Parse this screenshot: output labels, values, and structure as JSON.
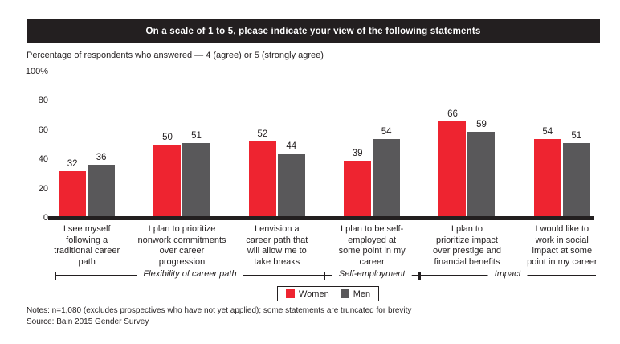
{
  "banner": {
    "title": "On a scale of 1 to 5, please indicate your view of the following statements"
  },
  "subtitle": "Percentage of respondents who answered — 4 (agree) or 5 (strongly agree)",
  "y_axis": {
    "ticks": [
      {
        "label": "100%",
        "value": 100
      },
      {
        "label": "80",
        "value": 80
      },
      {
        "label": "60",
        "value": 60
      },
      {
        "label": "40",
        "value": 40
      },
      {
        "label": "20",
        "value": 20
      },
      {
        "label": "0",
        "value": 0
      }
    ]
  },
  "chart_data": {
    "type": "bar",
    "title": "On a scale of 1 to 5, please indicate your view of the following statements",
    "ylabel": "Percentage of respondents who answered — 4 (agree) or 5 (strongly agree)",
    "ylim": [
      0,
      100
    ],
    "yticks": [
      0,
      20,
      40,
      60,
      80,
      100
    ],
    "grid": false,
    "legend_position": "bottom",
    "categories": [
      "I see myself\nfollowing a\ntraditional career\npath",
      "I plan to prioritize\nnonwork commitments\nover career\nprogression",
      "I envision a\ncareer path that\nwill allow me to\ntake breaks",
      "I plan to be self-\nemployed at\nsome point in my\ncareer",
      "I plan to\nprioritize impact\nover prestige and\nfinancial benefits",
      "I would like to\nwork in social\nimpact at some\npoint in my career"
    ],
    "series": [
      {
        "name": "Women",
        "color": "#ee2430",
        "values": [
          32,
          50,
          52,
          39,
          66,
          54
        ]
      },
      {
        "name": "Men",
        "color": "#59585a",
        "values": [
          36,
          51,
          44,
          54,
          59,
          51
        ]
      }
    ],
    "category_groups": [
      {
        "label": "Flexibility of career path",
        "from": 0,
        "to": 2
      },
      {
        "label": "Self-employment",
        "from": 3,
        "to": 3
      },
      {
        "label": "Impact",
        "from": 4,
        "to": 5
      }
    ]
  },
  "legend": {
    "items": [
      {
        "label": "Women",
        "color": "#ee2430"
      },
      {
        "label": "Men",
        "color": "#59585a"
      }
    ]
  },
  "notes": "Notes: n=1,080 (excludes prospectives who have not yet applied); some statements are truncated for brevity",
  "source": "Source: Bain 2015 Gender Survey"
}
